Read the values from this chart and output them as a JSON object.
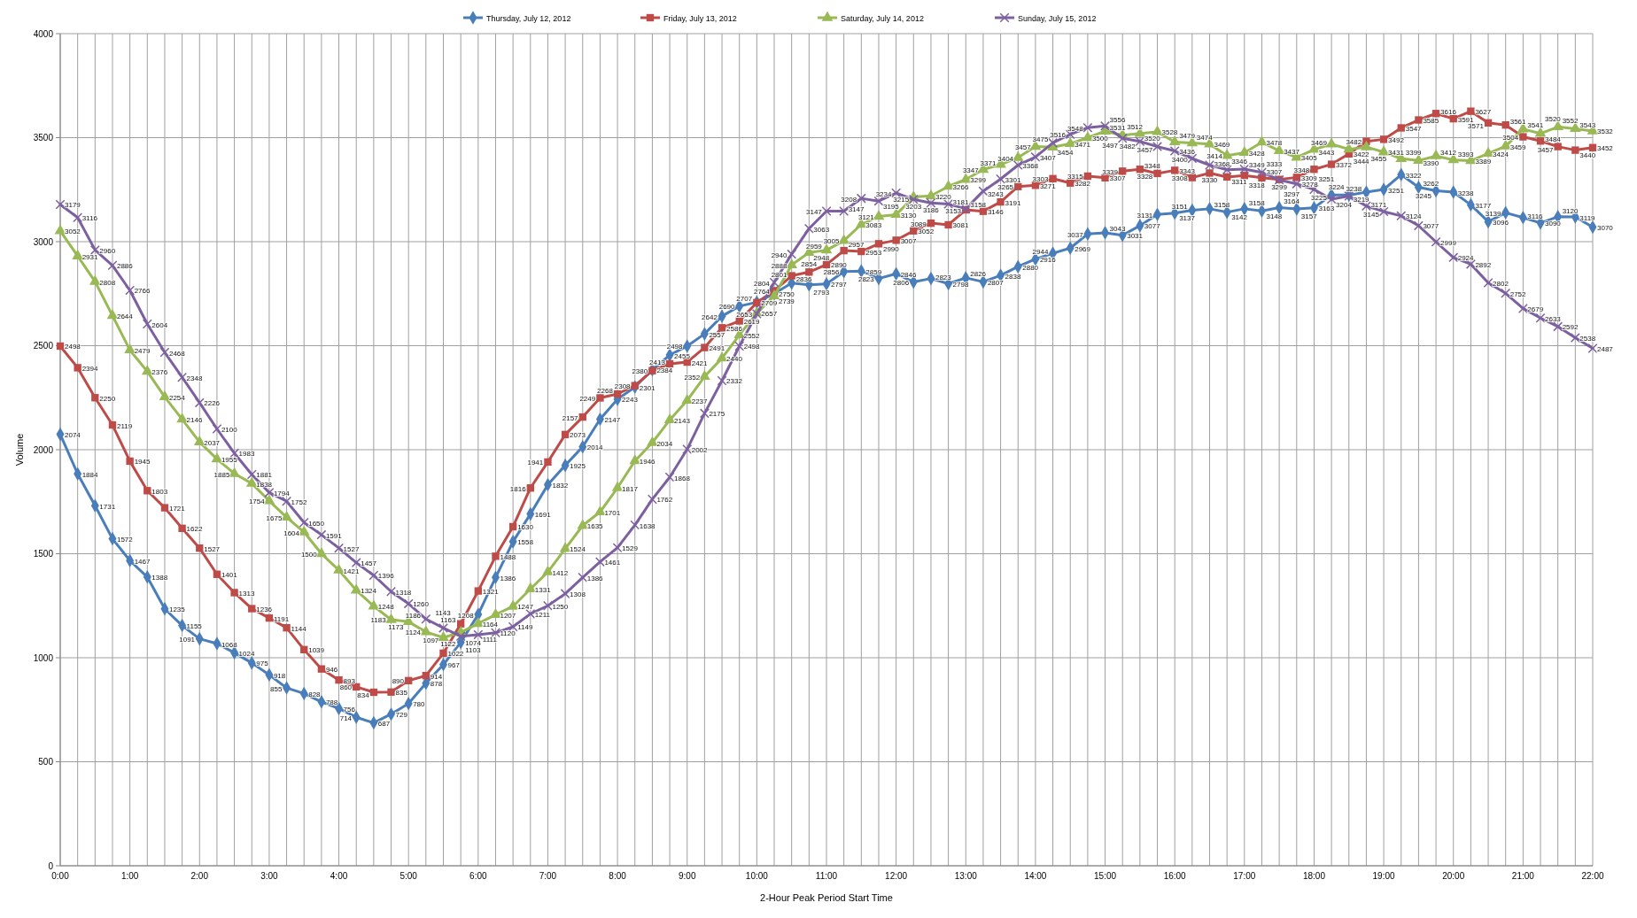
{
  "chart_data": {
    "type": "line",
    "xlabel": "2-Hour Peak Period Start Time",
    "ylabel": "Volume",
    "categories": [
      "0:00",
      null,
      null,
      null,
      "1:00",
      null,
      null,
      null,
      "2:00",
      null,
      null,
      null,
      "3:00",
      null,
      null,
      null,
      "4:00",
      null,
      null,
      null,
      "5:00",
      null,
      null,
      null,
      "6:00",
      null,
      null,
      null,
      "7:00",
      null,
      null,
      null,
      "8:00",
      null,
      null,
      null,
      "9:00",
      null,
      null,
      null,
      "10:00",
      null,
      null,
      null,
      "11:00",
      null,
      null,
      null,
      "12:00",
      null,
      null,
      null,
      "13:00",
      null,
      null,
      null,
      "14:00",
      null,
      null,
      null,
      "15:00",
      null,
      null,
      null,
      "16:00",
      null,
      null,
      null,
      "17:00",
      null,
      null,
      null,
      "18:00",
      null,
      null,
      null,
      "19:00",
      null,
      null,
      null,
      "20:00",
      null,
      null,
      null,
      "21:00",
      null,
      null,
      null,
      "22:00"
    ],
    "ylim": [
      0,
      4000
    ],
    "yticks": [
      0,
      500,
      1000,
      1500,
      2000,
      2500,
      3000,
      3500,
      4000
    ],
    "grid": true,
    "legend": "top",
    "data_labels": true,
    "series": [
      {
        "name": "Thursday, July 12, 2012",
        "color": "#4a7ebb",
        "marker": "diamond",
        "values": [
          2074,
          1884,
          1731,
          1572,
          1467,
          1388,
          1235,
          1155,
          1091,
          1068,
          1024,
          975,
          918,
          855,
          828,
          788,
          756,
          714,
          687,
          729,
          780,
          878,
          967,
          1074,
          1208,
          1386,
          1558,
          1691,
          1832,
          1925,
          2014,
          2147,
          2243,
          2301,
          2384,
          2455,
          2498,
          2557,
          2642,
          2690,
          2709,
          2750,
          2801,
          2793,
          2797,
          2856,
          2859,
          2823,
          2846,
          2806,
          2823,
          2798,
          2826,
          2807,
          2838,
          2880,
          2916,
          2944,
          2969,
          3037,
          3043,
          3031,
          3077,
          3131,
          3137,
          3151,
          3158,
          3142,
          3158,
          3148,
          3164,
          3157,
          3163,
          3225,
          3224,
          3238,
          3251,
          3322,
          3262,
          3245,
          3238,
          3177,
          3096,
          3139,
          3116,
          3090,
          3120,
          3119,
          3070
        ]
      },
      {
        "name": "Friday, July 13, 2012",
        "color": "#be4b48",
        "marker": "square",
        "values": [
          2498,
          2394,
          2250,
          2119,
          1945,
          1803,
          1721,
          1622,
          1527,
          1401,
          1313,
          1236,
          1191,
          1144,
          1039,
          946,
          893,
          860,
          834,
          835,
          890,
          914,
          1022,
          1163,
          1321,
          1488,
          1630,
          1816,
          1941,
          2073,
          2157,
          2249,
          2268,
          2308,
          2380,
          2413,
          2421,
          2491,
          2586,
          2619,
          2707,
          2764,
          2836,
          2854,
          2890,
          2957,
          2953,
          2990,
          3007,
          3052,
          3089,
          3081,
          3153,
          3146,
          3191,
          3265,
          3271,
          3303,
          3282,
          3315,
          3307,
          3339,
          3348,
          3328,
          3343,
          3308,
          3330,
          3311,
          3318,
          3307,
          3299,
          3309,
          3348,
          3372,
          3422,
          3482,
          3492,
          3547,
          3585,
          3616,
          3591,
          3627,
          3571,
          3561,
          3504,
          3484,
          3457,
          3440,
          3452
        ]
      },
      {
        "name": "Saturday, July 14, 2012",
        "color": "#98b954",
        "marker": "triangle",
        "values": [
          3052,
          2931,
          2808,
          2644,
          2479,
          2376,
          2254,
          2146,
          2037,
          1955,
          1885,
          1838,
          1754,
          1675,
          1604,
          1500,
          1421,
          1324,
          1248,
          1183,
          1173,
          1124,
          1097,
          1122,
          1164,
          1207,
          1247,
          1331,
          1412,
          1524,
          1635,
          1701,
          1817,
          1946,
          2034,
          2143,
          2237,
          2352,
          2440,
          2552,
          2657,
          2739,
          2888,
          2948,
          2959,
          3005,
          3083,
          3121,
          3130,
          3215,
          3220,
          3266,
          3299,
          3347,
          3371,
          3404,
          3457,
          3454,
          3471,
          3500,
          3531,
          3512,
          3520,
          3528,
          3479,
          3474,
          3469,
          3414,
          3428,
          3478,
          3437,
          3405,
          3443,
          3469,
          3444,
          3455,
          3431,
          3399,
          3390,
          3412,
          3393,
          3389,
          3424,
          3459,
          3541,
          3520,
          3552,
          3543,
          3532
        ]
      },
      {
        "name": "Sunday, July 15, 2012",
        "color": "#7d60a0",
        "marker": "cross",
        "values": [
          3179,
          3116,
          2960,
          2886,
          2766,
          2604,
          2468,
          2348,
          2226,
          2100,
          1983,
          1881,
          1794,
          1752,
          1650,
          1591,
          1527,
          1457,
          1396,
          1318,
          1260,
          1186,
          1143,
          1103,
          1111,
          1120,
          1149,
          1211,
          1250,
          1308,
          1386,
          1461,
          1529,
          1638,
          1762,
          1868,
          2002,
          2175,
          2332,
          2498,
          2653,
          2804,
          2940,
          3063,
          3147,
          3147,
          3208,
          3195,
          3234,
          3203,
          3186,
          3181,
          3158,
          3243,
          3301,
          3368,
          3407,
          3475,
          3516,
          3548,
          3556,
          3497,
          3482,
          3457,
          3436,
          3400,
          3368,
          3346,
          3349,
          3333,
          3297,
          3278,
          3251,
          3204,
          3219,
          3171,
          3145,
          3124,
          3077,
          2999,
          2924,
          2892,
          2802,
          2752,
          2679,
          2633,
          2592,
          2538,
          2487
        ]
      }
    ]
  }
}
